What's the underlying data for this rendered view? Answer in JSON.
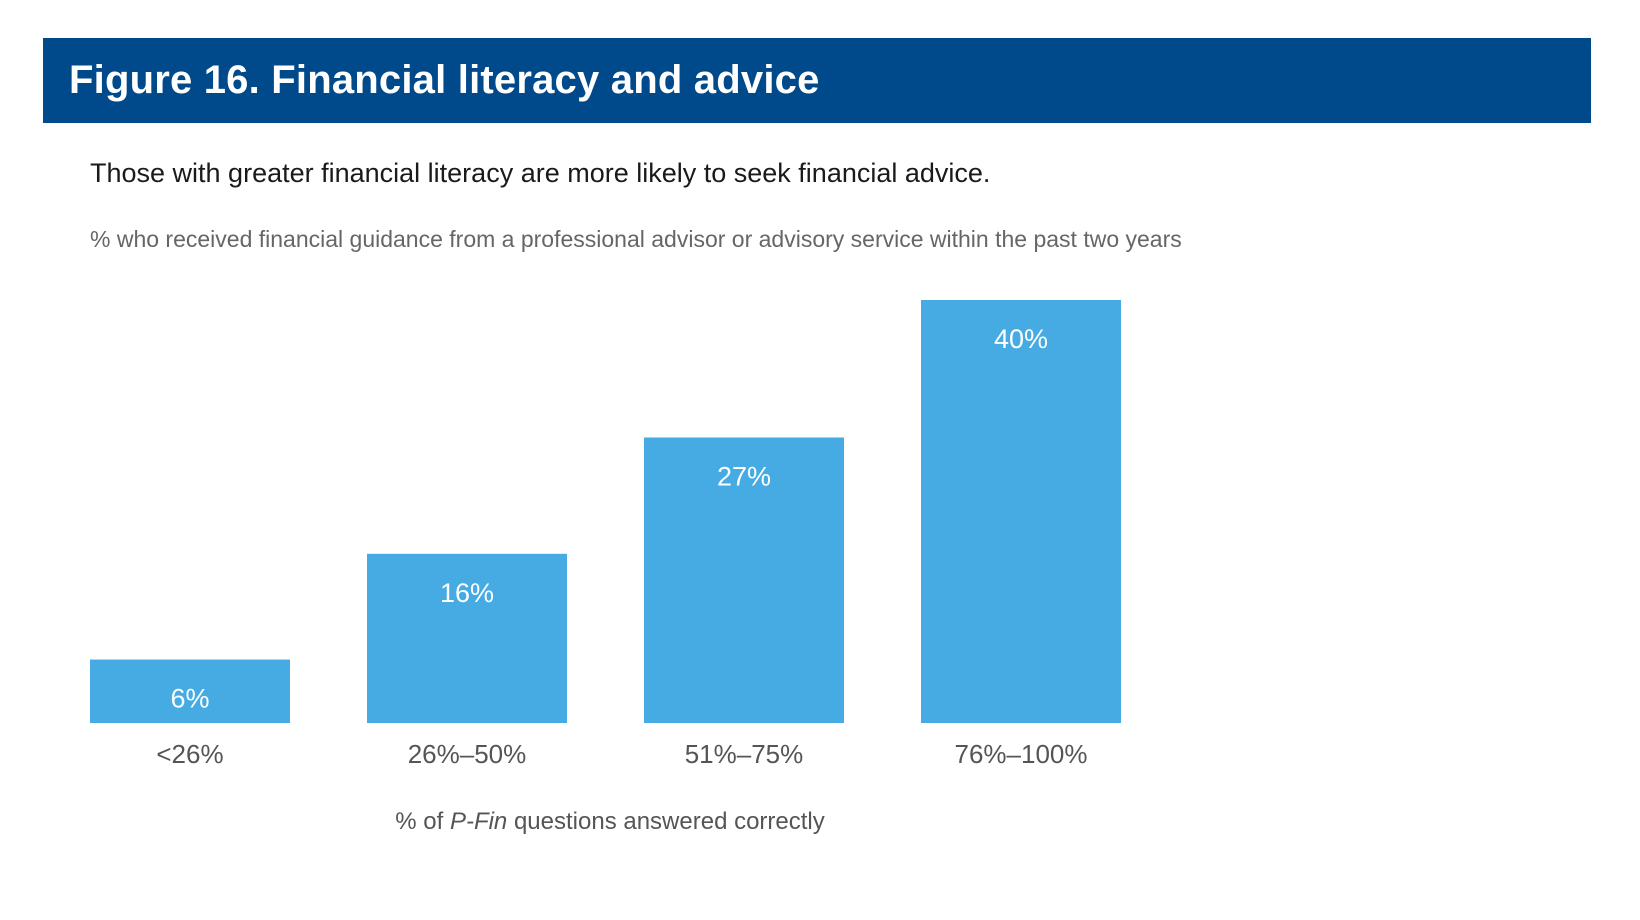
{
  "header": {
    "title": "Figure 16. Financial literacy and advice"
  },
  "subtitle": "Those with greater financial literacy are more likely to seek financial advice.",
  "measure_label": "% who received financial guidance from a professional advisor or advisory service within the past two years",
  "x_axis_title": {
    "prefix": "% of ",
    "italic": "P-Fin",
    "suffix": " questions answered correctly"
  },
  "colors": {
    "title_bar": "#004a8c",
    "bar": "#46abe3",
    "bar_label": "#ffffff",
    "tick_label": "#555555"
  },
  "chart_data": {
    "type": "bar",
    "title": "Figure 16. Financial literacy and advice",
    "categories": [
      "<26%",
      "26%–50%",
      "51%–75%",
      "76%–100%"
    ],
    "values": [
      6,
      16,
      27,
      40
    ],
    "value_labels": [
      "6%",
      "16%",
      "27%",
      "40%"
    ],
    "xlabel": "% of P-Fin questions answered correctly",
    "ylabel": "",
    "ylim": [
      0,
      40
    ],
    "grid": false,
    "legend": "none"
  }
}
